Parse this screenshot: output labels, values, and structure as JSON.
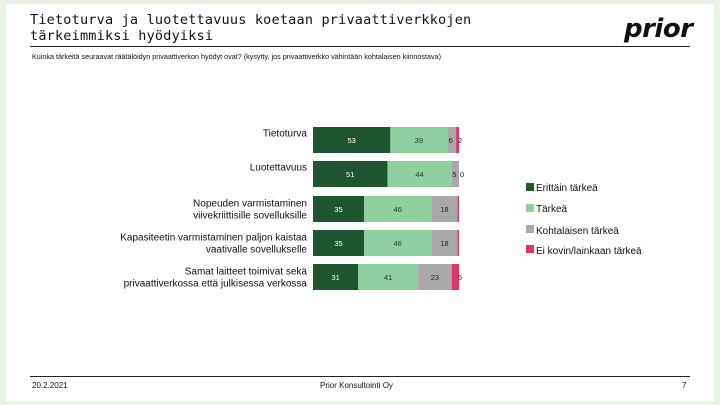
{
  "header": {
    "title": "Tietoturva ja luotettavuus koetaan privaattiverkkojen tärkeimmiksi hyödyiksi",
    "logo": "prior",
    "question": "Kuinka tärkeitä seuraavat räätälöidyn privaattiverkon hyödyt ovat? (kysytty, jos privaattiverkko vähintään kohtalaisen kiinnostava)"
  },
  "footer": {
    "date": "20.2.2021",
    "company": "Prior Konsultointi Oy",
    "page": "7"
  },
  "chart_data": {
    "type": "bar",
    "orientation": "horizontal",
    "stacked": true,
    "categories": [
      [
        "Tietoturva"
      ],
      [
        "Luotettavuus"
      ],
      [
        "Nopeuden varmistaminen",
        "viivekriittisille sovelluksille"
      ],
      [
        "Kapasiteetin varmistaminen paljon kaistaa",
        "vaativalle sovellukselle"
      ],
      [
        "Samat laitteet toimivat sekä",
        "privaattiverkossa että julkisessa verkossa"
      ]
    ],
    "series": [
      {
        "name": "Erittäin tärkeä",
        "color": "#1e5631",
        "text_color": "#ffffff",
        "values": [
          53,
          51,
          35,
          35,
          31
        ]
      },
      {
        "name": "Tärkeä",
        "color": "#8fd19e",
        "text_color": "#1a3a1f",
        "values": [
          39,
          44,
          46,
          46,
          41
        ]
      },
      {
        "name": "Kohtalaisen tärkeä",
        "color": "#a9a9a9",
        "text_color": "#222222",
        "values": [
          6,
          5,
          18,
          18,
          23
        ]
      },
      {
        "name": "Ei kovin/lainkaan tärkeä",
        "color": "#e0336e",
        "text_color": "#222222",
        "values": [
          2,
          0,
          1,
          1,
          5
        ]
      }
    ],
    "value_labels": [
      [
        "53",
        "39",
        "6",
        "2"
      ],
      [
        "51",
        "44",
        "5",
        "0"
      ],
      [
        "35",
        "46",
        "18",
        ""
      ],
      [
        "35",
        "46",
        "18",
        ""
      ],
      [
        "31",
        "41",
        "23",
        "5"
      ]
    ],
    "xlim": [
      0,
      100
    ],
    "legend_position": "right"
  }
}
